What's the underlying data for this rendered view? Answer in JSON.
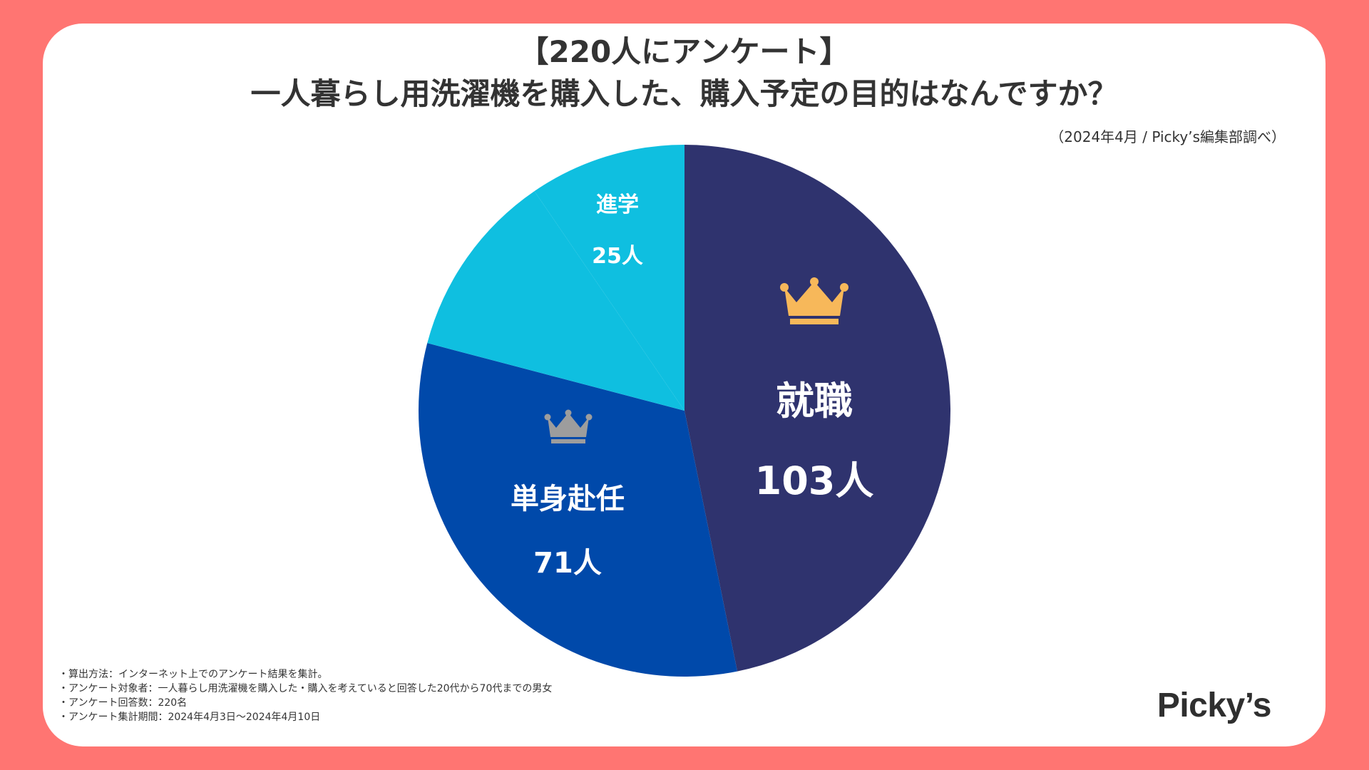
{
  "header": {
    "title_line1": "【220人にアンケート】",
    "title_line2": "一人暮らし用洗濯機を購入した、購入予定の目的はなんですか？",
    "source": "（2024年4月 / Picky’s編集部調べ）"
  },
  "chart_data": {
    "type": "pie",
    "title": "一人暮らし用洗濯機を購入した、購入予定の目的はなんですか？",
    "total": 220,
    "unit": "人",
    "slices": [
      {
        "name": "就職",
        "value": 103,
        "label": "103人",
        "color": "#2f336e",
        "rank": 1
      },
      {
        "name": "単身赴任",
        "value": 71,
        "label": "71人",
        "color": "#0049aa",
        "rank": 2
      },
      {
        "name": "進学",
        "value": 25,
        "label": "25人",
        "color": "#0fbfe0",
        "rank": null
      }
    ],
    "other_value": 21,
    "other_color": "#0fbfe0"
  },
  "icons": {
    "crown_gold": "crown-gold-icon",
    "crown_silver": "crown-silver-icon"
  },
  "colors": {
    "background": "#ff7572",
    "card": "#ffffff",
    "crown_gold": "#f7b85a",
    "crown_silver": "#9d9d9d",
    "text": "#333333"
  },
  "notes": [
    "・算出方法：インターネット上でのアンケート結果を集計。",
    "・アンケート対象者：一人暮らし用洗濯機を購入した・購入を考えていると回答した20代から70代までの男女",
    "・アンケート回答数：220名",
    "・アンケート集計期間：2024年4月3日〜2024年4月10日"
  ],
  "brand": "Picky’s"
}
